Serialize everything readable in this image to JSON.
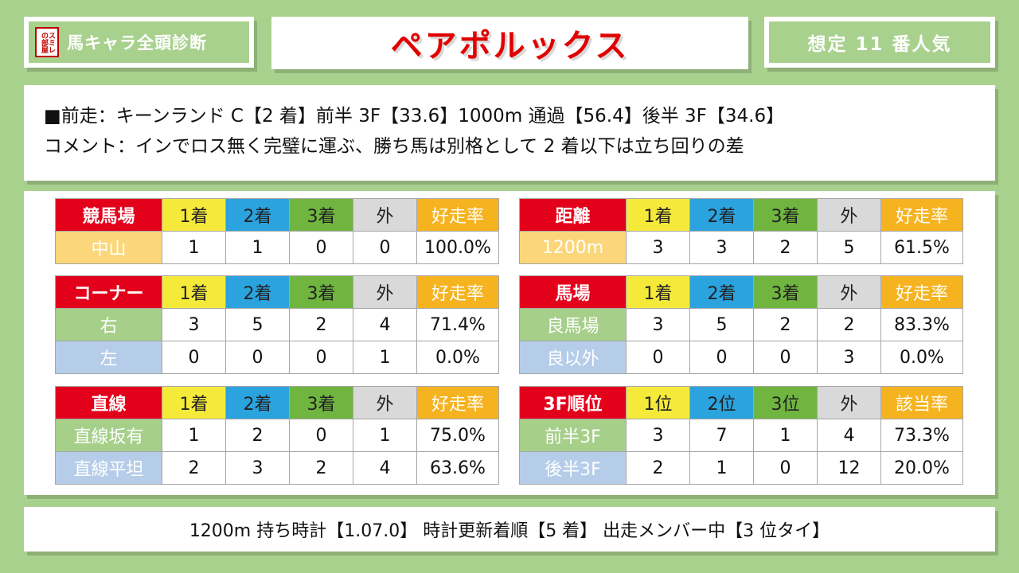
{
  "header": {
    "logo_text": "スミレの部屋",
    "brand_title": "馬キャラ全頭診断",
    "horse_name": "ペアポルックス",
    "popularity": "想定 11 番人気"
  },
  "race": {
    "line1": "■前走：キーンランド C【2 着】前半 3F【33.6】1000m 通過【56.4】後半 3F【34.6】",
    "line2": "コメント：インでロス無く完璧に運ぶ、勝ち馬は別格として 2 着以下は立ち回りの差"
  },
  "tables": [
    {
      "headers": [
        "競馬場",
        "1着",
        "2着",
        "3着",
        "外",
        "好走率"
      ],
      "rows": [
        {
          "label": "中山",
          "style": "gold",
          "values": [
            "1",
            "1",
            "0",
            "0",
            "100.0%"
          ]
        }
      ]
    },
    {
      "headers": [
        "距離",
        "1着",
        "2着",
        "3着",
        "外",
        "好走率"
      ],
      "rows": [
        {
          "label": "1200m",
          "style": "gold",
          "values": [
            "3",
            "3",
            "2",
            "5",
            "61.5%"
          ]
        }
      ]
    },
    {
      "headers": [
        "コーナー",
        "1着",
        "2着",
        "3着",
        "外",
        "好走率"
      ],
      "rows": [
        {
          "label": "右",
          "style": "green",
          "values": [
            "3",
            "5",
            "2",
            "4",
            "71.4%"
          ]
        },
        {
          "label": "左",
          "style": "blue",
          "values": [
            "0",
            "0",
            "0",
            "1",
            "0.0%"
          ]
        }
      ]
    },
    {
      "headers": [
        "馬場",
        "1着",
        "2着",
        "3着",
        "外",
        "好走率"
      ],
      "rows": [
        {
          "label": "良馬場",
          "style": "green",
          "values": [
            "3",
            "5",
            "2",
            "2",
            "83.3%"
          ]
        },
        {
          "label": "良以外",
          "style": "blue",
          "values": [
            "0",
            "0",
            "0",
            "3",
            "0.0%"
          ]
        }
      ]
    },
    {
      "headers": [
        "直線",
        "1着",
        "2着",
        "3着",
        "外",
        "好走率"
      ],
      "rows": [
        {
          "label": "直線坂有",
          "style": "green",
          "values": [
            "1",
            "2",
            "0",
            "1",
            "75.0%"
          ]
        },
        {
          "label": "直線平坦",
          "style": "blue",
          "values": [
            "2",
            "3",
            "2",
            "4",
            "63.6%"
          ]
        }
      ]
    },
    {
      "headers": [
        "3F順位",
        "1位",
        "2位",
        "3位",
        "外",
        "該当率"
      ],
      "rows": [
        {
          "label": "前半3F",
          "style": "green",
          "values": [
            "3",
            "7",
            "1",
            "4",
            "73.3%"
          ]
        },
        {
          "label": "後半3F",
          "style": "blue",
          "values": [
            "2",
            "1",
            "0",
            "12",
            "20.0%"
          ]
        }
      ]
    }
  ],
  "footer": {
    "text": "1200m 持ち時計【1.07.0】 時計更新着順【5 着】 出走メンバー中【3 位タイ】"
  },
  "colors": {
    "background": "#a9d18e",
    "accent_red": "#e3001b",
    "yellow": "#f5ea3a",
    "blue": "#2aa3df",
    "green": "#6fb53f",
    "gray": "#d9d9d9",
    "orange": "#f5b320"
  }
}
